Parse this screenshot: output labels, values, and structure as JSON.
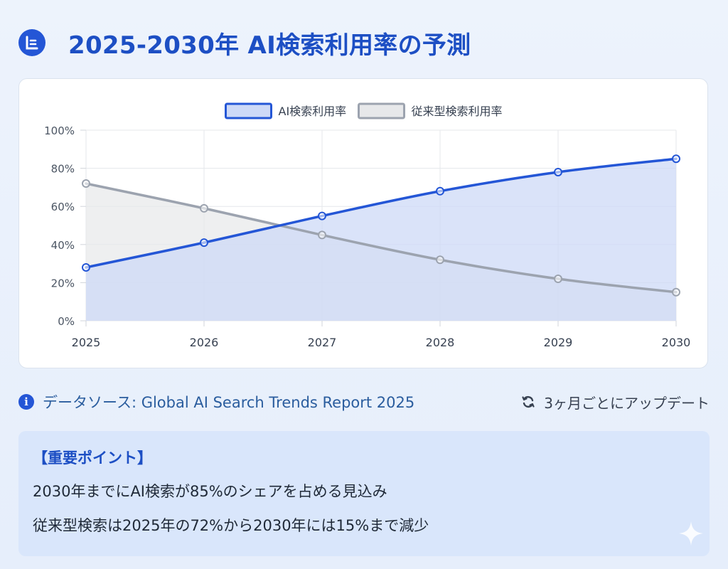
{
  "page": {
    "title": "2025-2030年 AI検索利用率の予測",
    "logo_icon": "report-logo-icon"
  },
  "chart_data": {
    "type": "line",
    "categories": [
      "2025",
      "2026",
      "2027",
      "2028",
      "2029",
      "2030"
    ],
    "series": [
      {
        "name": "AI検索利用率",
        "values": [
          28,
          41,
          55,
          68,
          78,
          85
        ],
        "color": "#2456d6",
        "fill": "#cdd9f7"
      },
      {
        "name": "従来型検索利用率",
        "values": [
          72,
          59,
          45,
          32,
          22,
          15
        ],
        "color": "#9ca3af",
        "fill": "#e7e8ea"
      }
    ],
    "ylim": [
      0,
      100
    ],
    "yticks": [
      {
        "value": 0,
        "label": "0%"
      },
      {
        "value": 20,
        "label": "20%"
      },
      {
        "value": 40,
        "label": "40%"
      },
      {
        "value": 60,
        "label": "60%"
      },
      {
        "value": 80,
        "label": "80%"
      },
      {
        "value": 100,
        "label": "100%"
      }
    ],
    "grid": true,
    "legend_position": "top-center",
    "area_fill": true
  },
  "footer": {
    "source_text": "データソース: Global AI Search Trends Report 2025",
    "update_text": "3ヶ月ごとにアップデート"
  },
  "key_points": {
    "title": "【重要ポイント】",
    "items": [
      "2030年までにAI検索が85%のシェアを占める見込み",
      "従来型検索は2025年の72%から2030年には15%まで減少"
    ]
  }
}
